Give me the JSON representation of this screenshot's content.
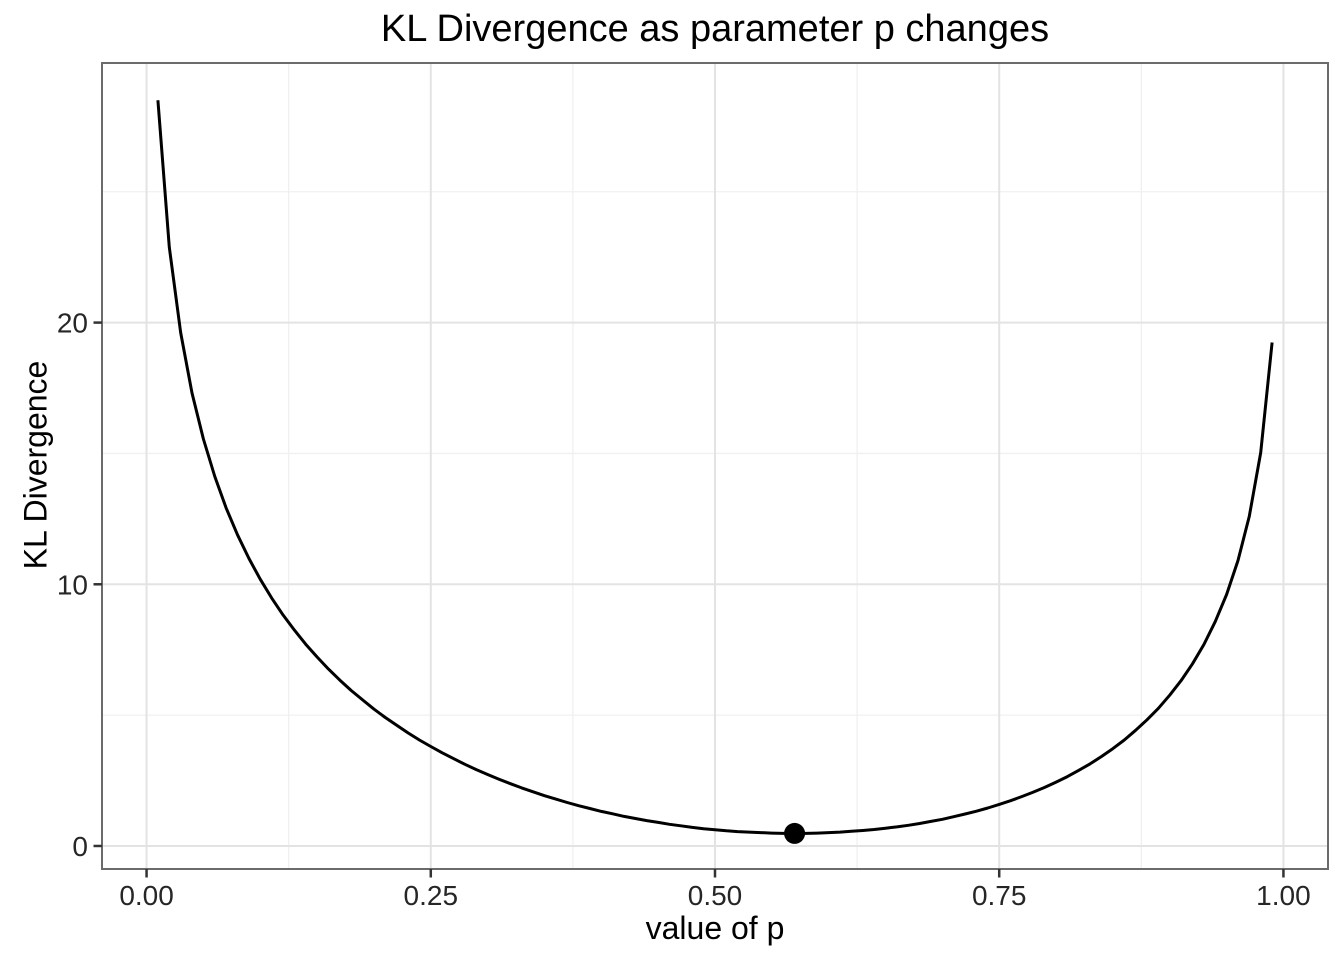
{
  "title": "KL Divergence as parameter p changes",
  "chart_data": {
    "type": "line",
    "title": "KL Divergence as parameter p changes",
    "xlabel": "value of p",
    "ylabel": "KL Divergence",
    "xlim": [
      -0.0392,
      1.0392
    ],
    "ylim": [
      -0.88,
      29.92
    ],
    "grid": "major+minor",
    "legend": "none",
    "x_ticks": {
      "values": [
        0,
        0.25,
        0.5,
        0.75,
        1.0
      ],
      "labels": [
        "0.00",
        "0.25",
        "0.50",
        "0.75",
        "1.00"
      ]
    },
    "y_ticks": {
      "values": [
        0,
        10,
        20
      ],
      "labels": [
        "0",
        "10",
        "20"
      ]
    },
    "x_minor": [
      0.125,
      0.375,
      0.625,
      0.875
    ],
    "y_minor": [
      5,
      15,
      25
    ],
    "series": [
      {
        "name": "kl-divergence-curve",
        "points": [
          [
            0.01,
            28.5
          ],
          [
            0.02,
            22.88
          ],
          [
            0.03,
            19.61
          ],
          [
            0.04,
            17.31
          ],
          [
            0.05,
            15.55
          ],
          [
            0.06,
            14.12
          ],
          [
            0.07,
            12.92
          ],
          [
            0.08,
            11.89
          ],
          [
            0.09,
            10.99
          ],
          [
            0.1,
            10.19
          ],
          [
            0.11,
            9.48
          ],
          [
            0.12,
            8.83
          ],
          [
            0.13,
            8.25
          ],
          [
            0.14,
            7.71
          ],
          [
            0.15,
            7.22
          ],
          [
            0.16,
            6.76
          ],
          [
            0.17,
            6.34
          ],
          [
            0.18,
            5.94
          ],
          [
            0.19,
            5.58
          ],
          [
            0.2,
            5.23
          ],
          [
            0.21,
            4.91
          ],
          [
            0.22,
            4.61
          ],
          [
            0.23,
            4.32
          ],
          [
            0.24,
            4.05
          ],
          [
            0.25,
            3.8
          ],
          [
            0.26,
            3.56
          ],
          [
            0.27,
            3.34
          ],
          [
            0.28,
            3.12
          ],
          [
            0.29,
            2.92
          ],
          [
            0.3,
            2.73
          ],
          [
            0.31,
            2.55
          ],
          [
            0.32,
            2.38
          ],
          [
            0.33,
            2.22
          ],
          [
            0.34,
            2.07
          ],
          [
            0.35,
            1.92
          ],
          [
            0.36,
            1.79
          ],
          [
            0.37,
            1.66
          ],
          [
            0.38,
            1.54
          ],
          [
            0.39,
            1.43
          ],
          [
            0.4,
            1.32
          ],
          [
            0.41,
            1.23
          ],
          [
            0.42,
            1.13
          ],
          [
            0.43,
            1.05
          ],
          [
            0.44,
            0.97
          ],
          [
            0.45,
            0.9
          ],
          [
            0.46,
            0.83
          ],
          [
            0.47,
            0.77
          ],
          [
            0.48,
            0.71
          ],
          [
            0.49,
            0.66
          ],
          [
            0.5,
            0.62
          ],
          [
            0.51,
            0.58
          ],
          [
            0.52,
            0.55
          ],
          [
            0.53,
            0.53
          ],
          [
            0.54,
            0.51
          ],
          [
            0.55,
            0.49
          ],
          [
            0.56,
            0.48
          ],
          [
            0.57,
            0.48
          ],
          [
            0.58,
            0.48
          ],
          [
            0.59,
            0.49
          ],
          [
            0.6,
            0.51
          ],
          [
            0.61,
            0.53
          ],
          [
            0.62,
            0.56
          ],
          [
            0.63,
            0.59
          ],
          [
            0.64,
            0.63
          ],
          [
            0.65,
            0.68
          ],
          [
            0.66,
            0.73
          ],
          [
            0.67,
            0.79
          ],
          [
            0.68,
            0.86
          ],
          [
            0.69,
            0.94
          ],
          [
            0.7,
            1.02
          ],
          [
            0.71,
            1.12
          ],
          [
            0.72,
            1.22
          ],
          [
            0.73,
            1.33
          ],
          [
            0.74,
            1.45
          ],
          [
            0.75,
            1.59
          ],
          [
            0.76,
            1.73
          ],
          [
            0.77,
            1.89
          ],
          [
            0.78,
            2.06
          ],
          [
            0.79,
            2.24
          ],
          [
            0.8,
            2.44
          ],
          [
            0.81,
            2.65
          ],
          [
            0.82,
            2.89
          ],
          [
            0.83,
            3.14
          ],
          [
            0.84,
            3.42
          ],
          [
            0.85,
            3.72
          ],
          [
            0.86,
            4.05
          ],
          [
            0.87,
            4.42
          ],
          [
            0.88,
            4.82
          ],
          [
            0.89,
            5.26
          ],
          [
            0.9,
            5.76
          ],
          [
            0.91,
            6.32
          ],
          [
            0.92,
            6.96
          ],
          [
            0.93,
            7.7
          ],
          [
            0.94,
            8.57
          ],
          [
            0.95,
            9.61
          ],
          [
            0.96,
            10.91
          ],
          [
            0.97,
            12.6
          ],
          [
            0.98,
            15.03
          ],
          [
            0.99,
            19.24
          ]
        ]
      }
    ],
    "marker_point": {
      "x": 0.57,
      "y": 0.48,
      "label": "minimum-kl-point"
    },
    "colors": {
      "line": "#000000",
      "point": "#000000",
      "grid_major": "#e3e3e3",
      "grid_minor": "#f0f0f0",
      "panel_border": "#6b6b6b",
      "tick_mark": "#333333",
      "tick_text": "#262626",
      "background": "#ffffff"
    }
  }
}
